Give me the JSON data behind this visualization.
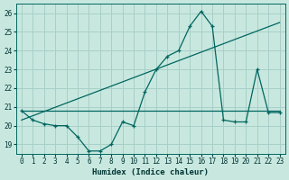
{
  "xlabel": "Humidex (Indice chaleur)",
  "background_color": "#c8e8df",
  "grid_color": "#a8cfc8",
  "line_color": "#006660",
  "xlim": [
    -0.5,
    23.5
  ],
  "ylim": [
    18.5,
    26.5
  ],
  "yticks": [
    19,
    20,
    21,
    22,
    23,
    24,
    25,
    26
  ],
  "xticks": [
    0,
    1,
    2,
    3,
    4,
    5,
    6,
    7,
    8,
    9,
    10,
    11,
    12,
    13,
    14,
    15,
    16,
    17,
    18,
    19,
    20,
    21,
    22,
    23
  ],
  "series1_x": [
    0,
    1,
    2,
    3,
    4,
    5,
    6,
    7,
    8,
    9,
    10,
    11,
    12,
    13,
    14,
    15,
    16,
    17,
    18,
    19,
    20,
    21,
    22,
    23
  ],
  "series1_y": [
    20.8,
    20.3,
    20.1,
    20.0,
    20.0,
    19.4,
    18.65,
    18.65,
    19.0,
    20.2,
    20.0,
    21.8,
    23.0,
    23.7,
    24.0,
    25.3,
    26.1,
    25.3,
    20.3,
    20.2,
    20.2,
    23.0,
    20.7,
    20.7
  ],
  "series2_x": [
    0,
    23
  ],
  "series2_y": [
    20.8,
    20.8
  ],
  "series3_x": [
    0,
    23
  ],
  "series3_y": [
    20.3,
    25.5
  ],
  "marker_x": [
    0,
    1,
    2,
    3,
    4,
    5,
    6,
    7,
    8,
    9,
    10,
    11,
    12,
    13,
    14,
    15,
    16,
    17,
    18,
    19,
    20,
    21,
    22,
    23
  ],
  "marker_y": [
    20.8,
    20.3,
    20.1,
    20.0,
    20.0,
    19.4,
    18.65,
    18.65,
    19.0,
    20.2,
    20.0,
    21.8,
    23.0,
    23.7,
    24.0,
    25.3,
    26.1,
    25.3,
    20.3,
    20.2,
    20.2,
    23.0,
    20.7,
    20.7
  ]
}
